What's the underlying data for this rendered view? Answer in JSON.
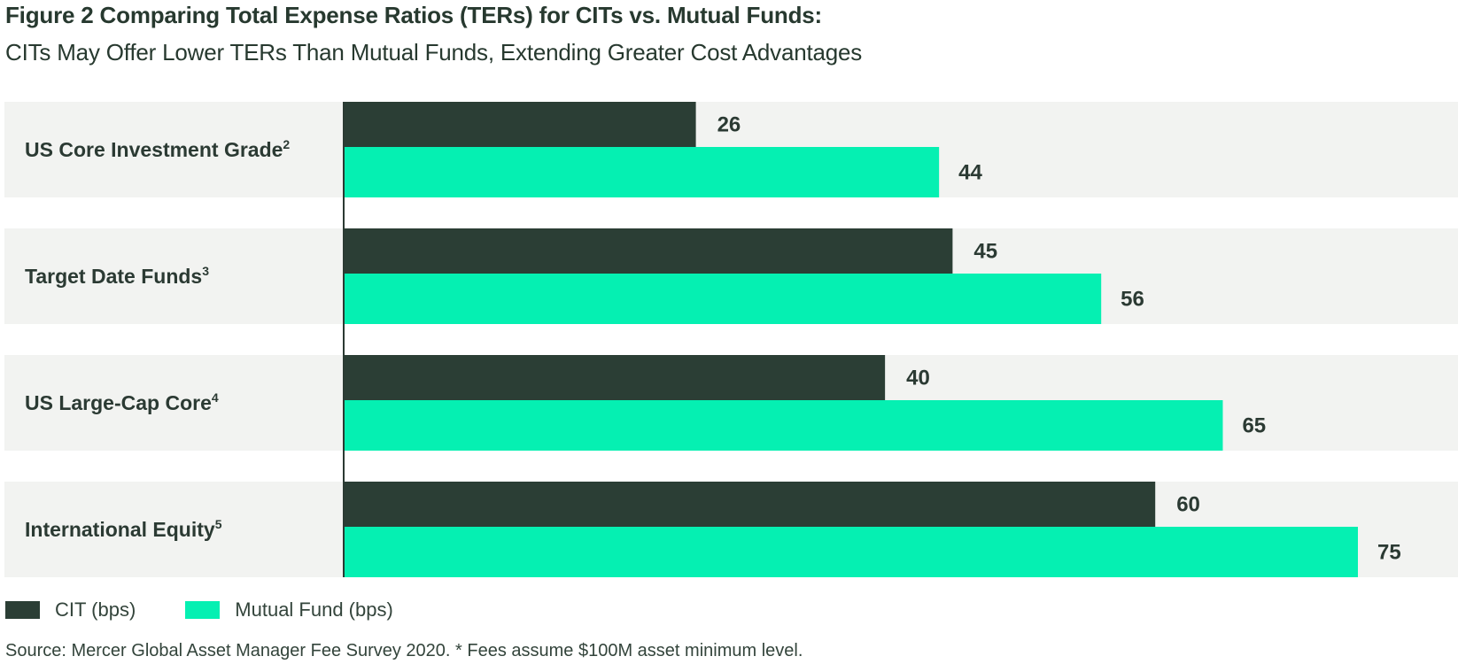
{
  "chart_data": {
    "type": "bar",
    "orientation": "horizontal",
    "title": "Figure 2 Comparing Total Expense Ratios (TERs) for CITs vs. Mutual Funds:",
    "subtitle": "CITs May Offer Lower TERs Than Mutual Funds, Extending Greater Cost Advantages",
    "categories": [
      {
        "label": "US Core Investment Grade",
        "sup": "2"
      },
      {
        "label": "Target Date Funds",
        "sup": "3"
      },
      {
        "label": "US Large-Cap Core",
        "sup": "4"
      },
      {
        "label": "International Equity",
        "sup": "5"
      }
    ],
    "series": [
      {
        "name": "CIT (bps)",
        "color": "#2b3e35",
        "values": [
          26,
          45,
          40,
          60
        ]
      },
      {
        "name": "Mutual Fund (bps)",
        "color": "#05f0b2",
        "values": [
          44,
          56,
          65,
          75
        ]
      }
    ],
    "xlim": [
      0,
      75
    ],
    "grid": false,
    "legend_position": "bottom-left",
    "band_color": "#f2f3f1",
    "source": "Source: Mercer Global Asset Manager Fee Survey 2020. * Fees assume $100M asset minimum level."
  }
}
